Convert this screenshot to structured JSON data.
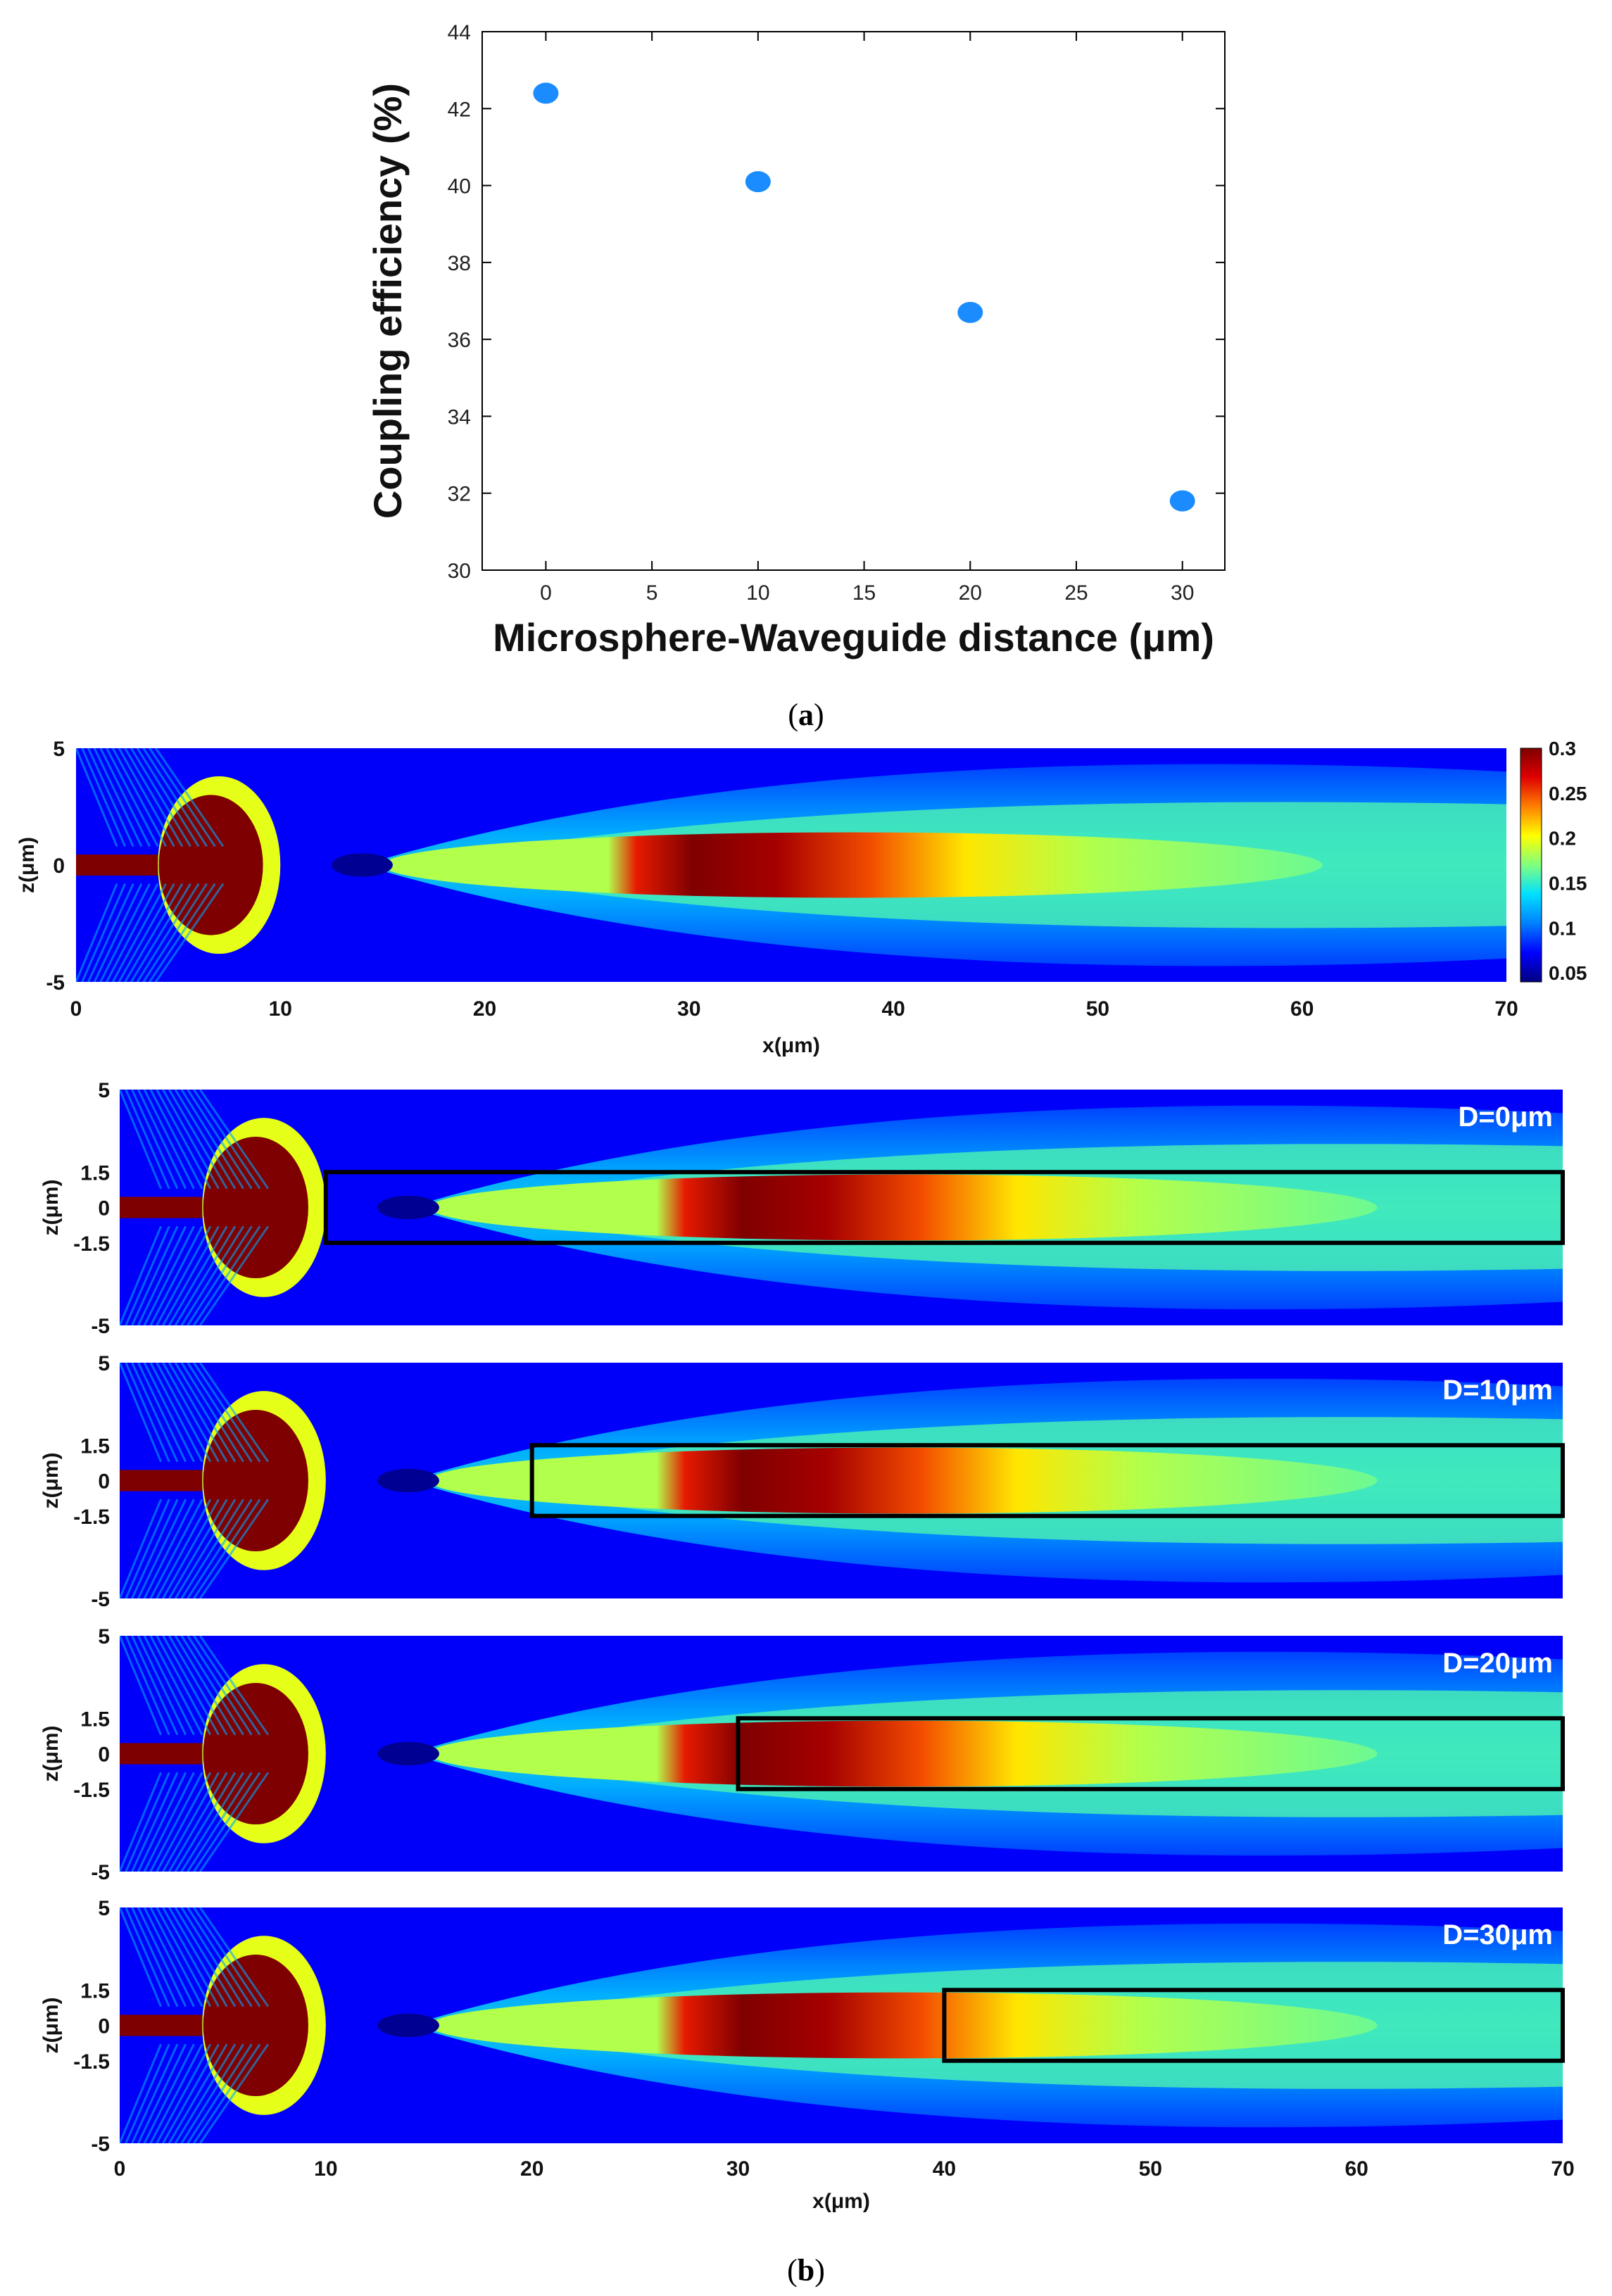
{
  "panel_a": {
    "label_open": "(",
    "label_letter": "a",
    "label_close": ")"
  },
  "panel_b": {
    "label_open": "(",
    "label_letter": "b",
    "label_close": ")"
  },
  "colors": {
    "marker": "#1a8cff",
    "colormap": [
      "#00007f",
      "#0000ff",
      "#0080ff",
      "#00e0ff",
      "#7fff7f",
      "#ffff00",
      "#ff8000",
      "#e00000",
      "#7f0000"
    ],
    "waveguide_outline": "#000000",
    "label_text": "#ffffff"
  },
  "chart_data": [
    {
      "type": "scatter",
      "title": "",
      "xlabel": "Microsphere-Waveguide distance (μm)",
      "ylabel": "Coupling efficiency (%)",
      "xlim": [
        -3,
        32
      ],
      "ylim": [
        30,
        44
      ],
      "xticks": [
        0,
        5,
        10,
        15,
        20,
        25,
        30
      ],
      "yticks": [
        30,
        32,
        34,
        36,
        38,
        40,
        42,
        44
      ],
      "grid": false,
      "points": [
        {
          "x": 0,
          "y": 42.4
        },
        {
          "x": 10,
          "y": 40.1
        },
        {
          "x": 20,
          "y": 36.7
        },
        {
          "x": 30,
          "y": 31.8
        }
      ]
    },
    {
      "type": "heatmap",
      "title": "",
      "xlabel": "x(μm)",
      "ylabel": "z(μm)",
      "xlim": [
        0,
        70
      ],
      "ylim": [
        -5,
        5
      ],
      "xticks": [
        0,
        10,
        20,
        30,
        40,
        50,
        60,
        70
      ],
      "yticks": [
        5,
        0,
        -5
      ],
      "colorbar": {
        "min": 0.04,
        "max": 0.3,
        "ticks": [
          "0.3",
          "0.25",
          "0.2",
          "0.15",
          "0.1",
          "0.05"
        ]
      }
    },
    {
      "type": "heatmap",
      "label": "D=0μm",
      "distance": 0,
      "waveguide_start": 10,
      "waveguide_halfwidth": 1.5,
      "ylabel": "z(μm)",
      "xlim": [
        0,
        70
      ],
      "ylim": [
        -5,
        5
      ],
      "yticks": [
        "5",
        "1.5",
        "0",
        "-1.5",
        "-5"
      ]
    },
    {
      "type": "heatmap",
      "label": "D=10μm",
      "distance": 10,
      "waveguide_start": 20,
      "waveguide_halfwidth": 1.5,
      "ylabel": "z(μm)",
      "xlim": [
        0,
        70
      ],
      "ylim": [
        -5,
        5
      ],
      "yticks": [
        "5",
        "1.5",
        "0",
        "-1.5",
        "-5"
      ]
    },
    {
      "type": "heatmap",
      "label": "D=20μm",
      "distance": 20,
      "waveguide_start": 30,
      "waveguide_halfwidth": 1.5,
      "ylabel": "z(μm)",
      "xlim": [
        0,
        70
      ],
      "ylim": [
        -5,
        5
      ],
      "yticks": [
        "5",
        "1.5",
        "0",
        "-1.5",
        "-5"
      ]
    },
    {
      "type": "heatmap",
      "label": "D=30μm",
      "distance": 30,
      "waveguide_start": 40,
      "waveguide_halfwidth": 1.5,
      "xlabel": "x(μm)",
      "ylabel": "z(μm)",
      "xlim": [
        0,
        70
      ],
      "ylim": [
        -5,
        5
      ],
      "xticks": [
        0,
        10,
        20,
        30,
        40,
        50,
        60,
        70
      ],
      "yticks": [
        "5",
        "1.5",
        "0",
        "-1.5",
        "-5"
      ]
    }
  ]
}
